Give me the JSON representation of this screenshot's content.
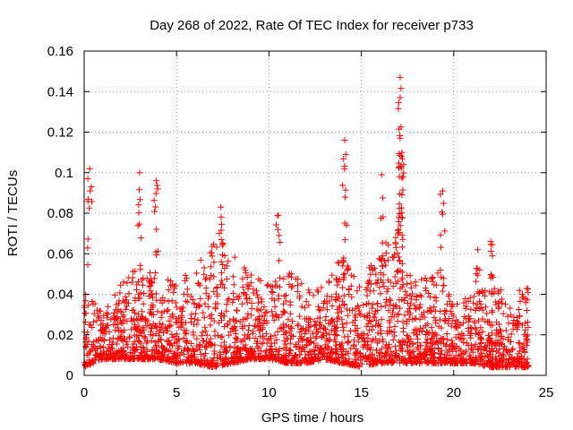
{
  "chart_data": {
    "type": "scatter",
    "title": "Day 268 of 2022, Rate Of TEC Index for receiver p733",
    "xlabel": "GPS time / hours",
    "ylabel": "ROTI / TECUs",
    "xlim": [
      0,
      25
    ],
    "ylim": [
      0,
      0.16
    ],
    "x_ticks": [
      "0",
      "5",
      "10",
      "15",
      "20",
      "25"
    ],
    "y_ticks": [
      "0",
      "0.02",
      "0.04",
      "0.06",
      "0.08",
      "0.1",
      "0.12",
      "0.14",
      "0.16"
    ],
    "grid": true,
    "marker": "+",
    "series_color": "#ff0000",
    "notable_points": [
      {
        "x": 0.3,
        "y": 0.102
      },
      {
        "x": 3.0,
        "y": 0.1
      },
      {
        "x": 3.9,
        "y": 0.096
      },
      {
        "x": 7.4,
        "y": 0.083
      },
      {
        "x": 10.5,
        "y": 0.079
      },
      {
        "x": 14.1,
        "y": 0.116
      },
      {
        "x": 16.1,
        "y": 0.099
      },
      {
        "x": 17.1,
        "y": 0.147
      },
      {
        "x": 17.1,
        "y": 0.137
      },
      {
        "x": 17.1,
        "y": 0.117
      },
      {
        "x": 17.2,
        "y": 0.11
      },
      {
        "x": 19.4,
        "y": 0.091
      },
      {
        "x": 21.3,
        "y": 0.062
      },
      {
        "x": 22.0,
        "y": 0.066
      }
    ],
    "baseline_envelope": [
      {
        "x": 0,
        "low": 0.004,
        "high": 0.05
      },
      {
        "x": 1,
        "low": 0.008,
        "high": 0.03
      },
      {
        "x": 2,
        "low": 0.008,
        "high": 0.045
      },
      {
        "x": 3,
        "low": 0.008,
        "high": 0.055
      },
      {
        "x": 4,
        "low": 0.008,
        "high": 0.05
      },
      {
        "x": 5,
        "low": 0.006,
        "high": 0.045
      },
      {
        "x": 6,
        "low": 0.006,
        "high": 0.055
      },
      {
        "x": 7,
        "low": 0.004,
        "high": 0.065
      },
      {
        "x": 8,
        "low": 0.006,
        "high": 0.06
      },
      {
        "x": 9,
        "low": 0.008,
        "high": 0.05
      },
      {
        "x": 10,
        "low": 0.008,
        "high": 0.045
      },
      {
        "x": 11,
        "low": 0.006,
        "high": 0.055
      },
      {
        "x": 12,
        "low": 0.006,
        "high": 0.045
      },
      {
        "x": 13,
        "low": 0.008,
        "high": 0.045
      },
      {
        "x": 14,
        "low": 0.006,
        "high": 0.06
      },
      {
        "x": 15,
        "low": 0.004,
        "high": 0.045
      },
      {
        "x": 16,
        "low": 0.006,
        "high": 0.065
      },
      {
        "x": 17,
        "low": 0.006,
        "high": 0.07
      },
      {
        "x": 18,
        "low": 0.006,
        "high": 0.045
      },
      {
        "x": 19,
        "low": 0.006,
        "high": 0.055
      },
      {
        "x": 20,
        "low": 0.006,
        "high": 0.035
      },
      {
        "x": 21,
        "low": 0.006,
        "high": 0.04
      },
      {
        "x": 22,
        "low": 0.004,
        "high": 0.045
      },
      {
        "x": 23,
        "low": 0.004,
        "high": 0.04
      },
      {
        "x": 24,
        "low": 0.004,
        "high": 0.045
      }
    ]
  }
}
